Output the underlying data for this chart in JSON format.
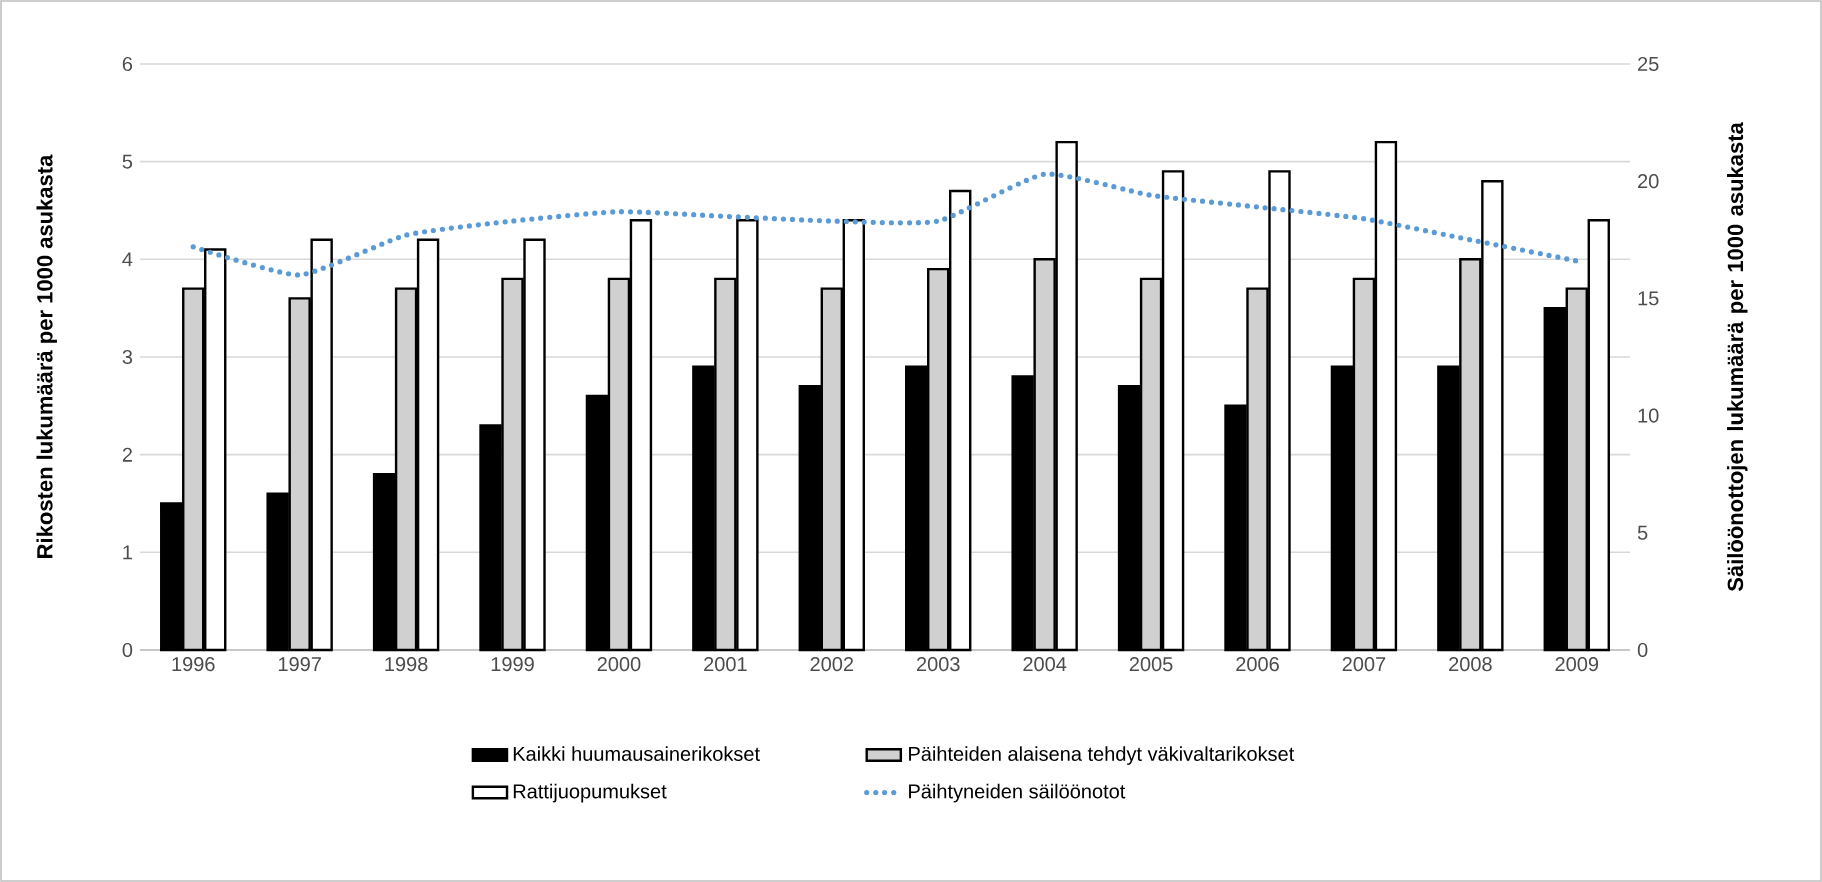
{
  "chart_data": {
    "type": "bar",
    "categories": [
      "1996",
      "1997",
      "1998",
      "1999",
      "2000",
      "2001",
      "2002",
      "2003",
      "2004",
      "2005",
      "2006",
      "2007",
      "2008",
      "2009"
    ],
    "series": [
      {
        "name": "Kaikki huumausainerikokset",
        "color": "#000000",
        "values": [
          1.5,
          1.6,
          1.8,
          2.3,
          2.6,
          2.9,
          2.7,
          2.9,
          2.8,
          2.7,
          2.5,
          2.9,
          2.9,
          3.5
        ]
      },
      {
        "name": "Päihteiden alaisena tehdyt väkivaltarikokset",
        "color": "#d0d0d0",
        "values": [
          3.7,
          3.6,
          3.7,
          3.8,
          3.8,
          3.8,
          3.7,
          3.9,
          4.0,
          3.8,
          3.7,
          3.8,
          4.0,
          3.7
        ]
      },
      {
        "name": "Rattijuopumukset",
        "color": "#ffffff",
        "values": [
          4.1,
          4.2,
          4.2,
          4.2,
          4.4,
          4.4,
          4.4,
          4.7,
          5.2,
          4.9,
          4.9,
          5.2,
          4.8,
          4.4
        ]
      },
      {
        "name": "Päihtyneiden säilöönotot",
        "type": "line",
        "axis": "y2",
        "color": "#5b9bd5",
        "line_style": "dotted",
        "values": [
          17.2,
          16.0,
          17.7,
          18.3,
          18.7,
          18.5,
          18.3,
          18.3,
          20.3,
          19.4,
          18.9,
          18.4,
          17.5,
          16.6
        ]
      }
    ],
    "ylabel": "Rikosten lukumäärä per 1000 asukasta",
    "y2label": "Säilöönottojen lukumäärä per 1000 asukasta",
    "ylim": [
      0,
      6
    ],
    "yticks": [
      0,
      1,
      2,
      3,
      4,
      5,
      6
    ],
    "y2lim": [
      0,
      25
    ],
    "y2ticks": [
      0,
      5,
      10,
      15,
      20,
      25
    ],
    "grid": "y",
    "legend": "bottom"
  }
}
